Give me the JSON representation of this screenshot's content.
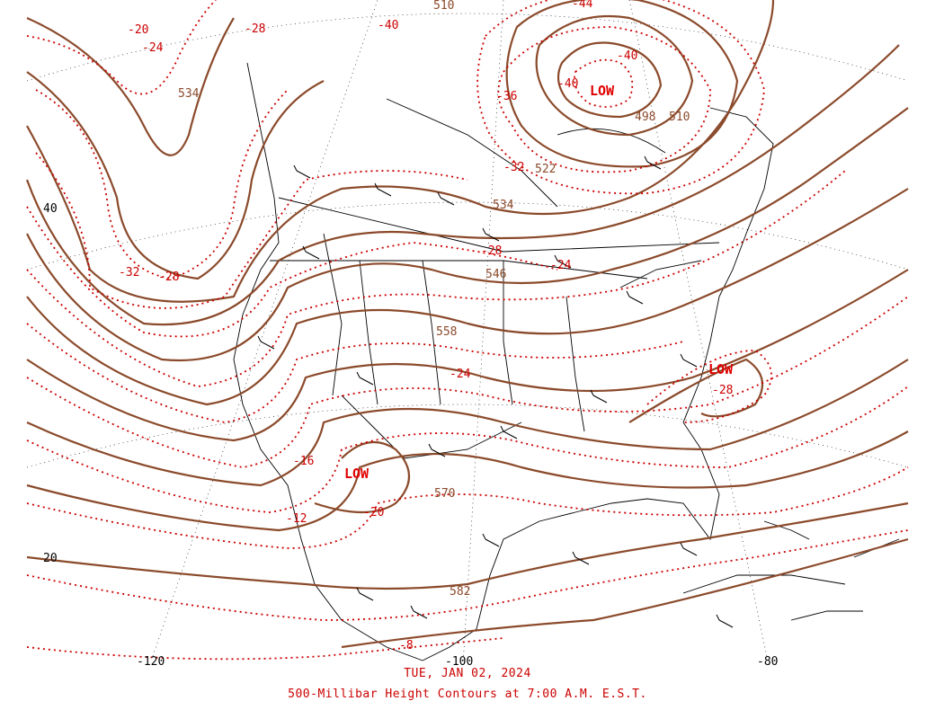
{
  "colors": {
    "height_contour": "#8b4a2b",
    "temp_contour": "#cc0000",
    "low_label": "#e00000",
    "coast": "#000000",
    "caption": "#cc0000"
  },
  "map": {
    "lat_labels": [
      "40",
      "20"
    ],
    "lon_labels": [
      "-120",
      "-100",
      "-80"
    ],
    "height_labels": [
      "534",
      "510",
      "522",
      "534",
      "546",
      "558",
      "570",
      "582",
      "498",
      "510"
    ],
    "temp_labels": [
      "-20",
      "-24",
      "-28",
      "-40",
      "-44",
      "-40",
      "-40",
      "-36",
      "-32",
      "-28",
      "-24",
      "-32",
      "-28",
      "-24",
      "-16",
      "-20",
      "-12",
      "-28",
      "-8"
    ],
    "low_centers": [
      "LOW",
      "LOW",
      "LOW"
    ]
  },
  "caption": {
    "date": "TUE, JAN 02, 2024",
    "title": "500-Millibar Height Contours at 7:00 A.M. E.S.T."
  }
}
